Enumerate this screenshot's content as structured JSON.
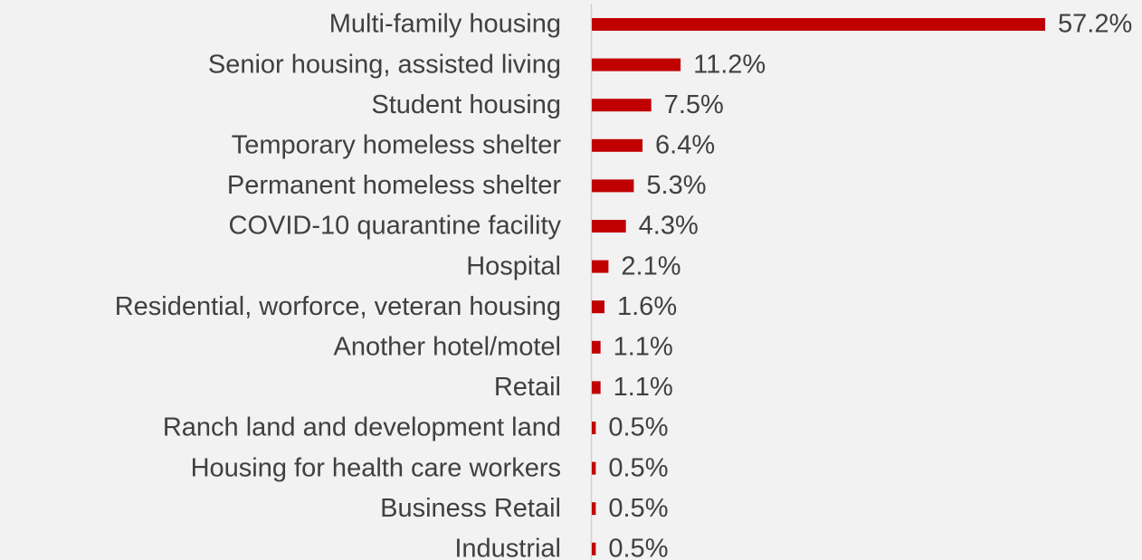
{
  "chart_data": {
    "type": "bar",
    "orientation": "horizontal",
    "categories": [
      "Multi-family housing",
      "Senior housing, assisted living",
      "Student housing",
      "Temporary homeless shelter",
      "Permanent homeless shelter",
      "COVID-10 quarantine facility",
      "Hospital",
      "Residential, worforce, veteran housing",
      "Another hotel/motel",
      "Retail",
      "Ranch land and development land",
      "Housing for health care workers",
      "Business Retail",
      "Industrial"
    ],
    "values": [
      57.2,
      11.2,
      7.5,
      6.4,
      5.3,
      4.3,
      2.1,
      1.6,
      1.1,
      1.1,
      0.5,
      0.5,
      0.5,
      0.5
    ],
    "value_labels": [
      "57.2%",
      "11.2%",
      "7.5%",
      "6.4%",
      "5.3%",
      "4.3%",
      "2.1%",
      "1.6%",
      "1.1%",
      "1.1%",
      "0.5%",
      "0.5%",
      "0.5%",
      "0.5%"
    ],
    "color": "#c00000"
  }
}
